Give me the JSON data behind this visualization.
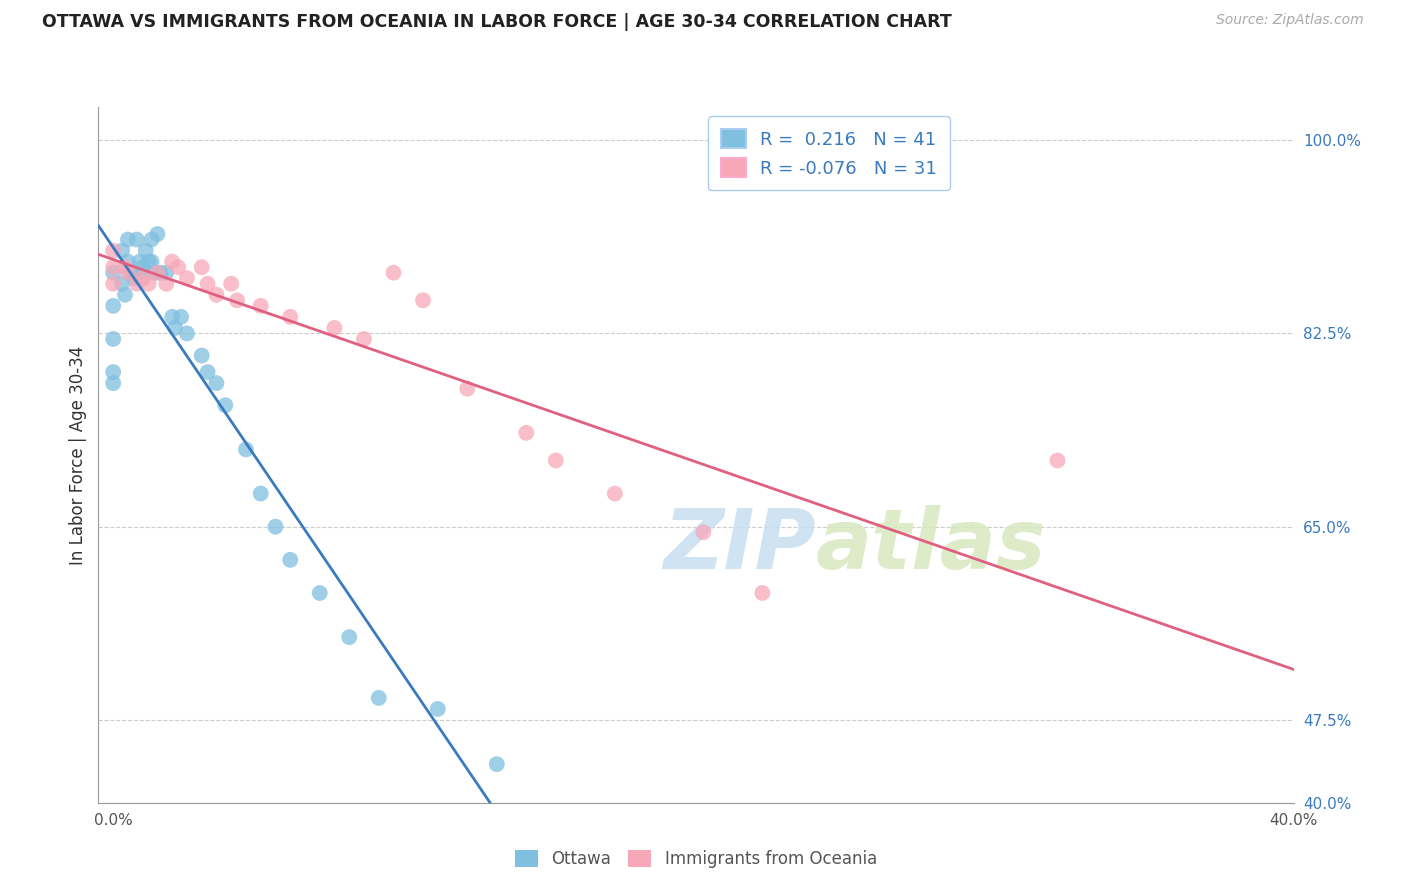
{
  "title": "OTTAWA VS IMMIGRANTS FROM OCEANIA IN LABOR FORCE | AGE 30-34 CORRELATION CHART",
  "source": "Source: ZipAtlas.com",
  "ylabel": "In Labor Force | Age 30-34",
  "xlim": [
    -0.5,
    40.0
  ],
  "ylim": [
    40.0,
    103.0
  ],
  "xticks": [
    0,
    5,
    10,
    15,
    20,
    25,
    30,
    35,
    40
  ],
  "xtick_labels": [
    "0.0%",
    "",
    "",
    "",
    "",
    "",
    "",
    "",
    "40.0%"
  ],
  "yticks": [
    40.0,
    47.5,
    65.0,
    82.5,
    100.0
  ],
  "ytick_labels": [
    "40.0%",
    "47.5%",
    "65.0%",
    "82.5%",
    "100.0%"
  ],
  "blue_color": "#7fbfdf",
  "pink_color": "#f7a8b8",
  "blue_line_color": "#3a7abf",
  "pink_line_color": "#e06080",
  "R_blue": 0.216,
  "N_blue": 41,
  "R_pink": -0.076,
  "N_pink": 31,
  "legend_label_blue": "Ottawa",
  "legend_label_pink": "Immigrants from Oceania",
  "watermark_zip": "ZIP",
  "watermark_atlas": "atlas",
  "blue_x": [
    0.0,
    0.0,
    0.0,
    0.0,
    0.0,
    0.3,
    0.3,
    0.4,
    0.5,
    0.5,
    0.6,
    0.7,
    0.8,
    0.9,
    1.0,
    1.0,
    1.1,
    1.2,
    1.3,
    1.3,
    1.4,
    1.5,
    1.6,
    1.8,
    2.0,
    2.1,
    2.3,
    2.5,
    3.0,
    3.2,
    3.5,
    3.8,
    4.5,
    5.0,
    5.5,
    6.0,
    7.0,
    8.0,
    9.0,
    11.0,
    13.0
  ],
  "blue_y": [
    85.0,
    88.0,
    82.0,
    79.0,
    78.0,
    90.0,
    87.0,
    86.0,
    91.0,
    89.0,
    88.0,
    87.5,
    91.0,
    89.0,
    88.5,
    87.5,
    90.0,
    89.0,
    91.0,
    89.0,
    88.0,
    91.5,
    88.0,
    88.0,
    84.0,
    83.0,
    84.0,
    82.5,
    80.5,
    79.0,
    78.0,
    76.0,
    72.0,
    68.0,
    65.0,
    62.0,
    59.0,
    55.0,
    49.5,
    48.5,
    43.5
  ],
  "pink_x": [
    0.0,
    0.0,
    0.0,
    0.4,
    0.5,
    0.8,
    1.0,
    1.2,
    1.5,
    1.8,
    2.0,
    2.2,
    2.5,
    3.0,
    3.2,
    3.5,
    4.0,
    4.2,
    5.0,
    6.0,
    7.5,
    8.5,
    9.5,
    10.5,
    12.0,
    14.0,
    15.0,
    17.0,
    20.0,
    22.0,
    32.0
  ],
  "pink_y": [
    90.0,
    88.5,
    87.0,
    88.5,
    88.0,
    87.0,
    87.5,
    87.0,
    88.0,
    87.0,
    89.0,
    88.5,
    87.5,
    88.5,
    87.0,
    86.0,
    87.0,
    85.5,
    85.0,
    84.0,
    83.0,
    82.0,
    88.0,
    85.5,
    77.5,
    73.5,
    71.0,
    68.0,
    64.5,
    59.0,
    71.0
  ]
}
